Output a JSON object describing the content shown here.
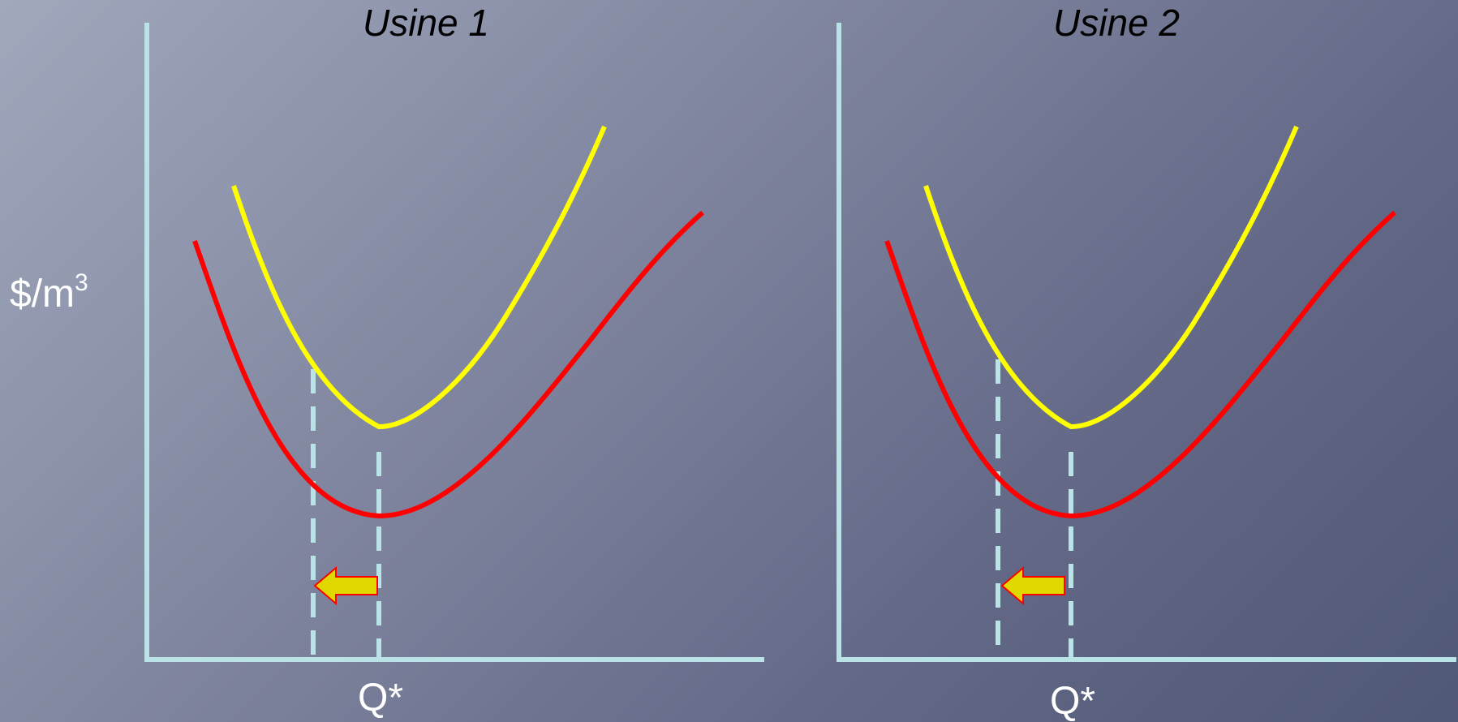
{
  "colors": {
    "axis": "#b9e3e6",
    "curve_upper": "#ffff00",
    "curve_lower": "#ff0000",
    "arrow_fill": "#e0d800",
    "arrow_stroke": "#ff0000"
  },
  "y_axis_label": "$/m",
  "y_axis_label_sup": "3",
  "chart_data": [
    {
      "type": "line",
      "title": "Usine 1",
      "ylabel": "$/m3",
      "xtick_label": "Q*",
      "series": [
        {
          "color": "yellow",
          "min_x": 0.38,
          "min_y": 0.35
        },
        {
          "color": "red",
          "min_x": 0.38,
          "min_y": 0.22
        }
      ],
      "reference_lines": [
        {
          "x": 0.27,
          "style": "dashed"
        },
        {
          "x": 0.38,
          "style": "dashed"
        }
      ],
      "annotation": "arrow pointing left from second dashed line to first"
    },
    {
      "type": "line",
      "title": "Usine 2",
      "ylabel": "$/m3",
      "xtick_label": "Q*",
      "series": [
        {
          "color": "yellow",
          "min_x": 0.38,
          "min_y": 0.35
        },
        {
          "color": "red",
          "min_x": 0.38,
          "min_y": 0.22
        }
      ],
      "reference_lines": [
        {
          "x": 0.26,
          "style": "dashed"
        },
        {
          "x": 0.38,
          "style": "dashed"
        }
      ],
      "annotation": "arrow pointing left from second dashed line to first"
    }
  ]
}
